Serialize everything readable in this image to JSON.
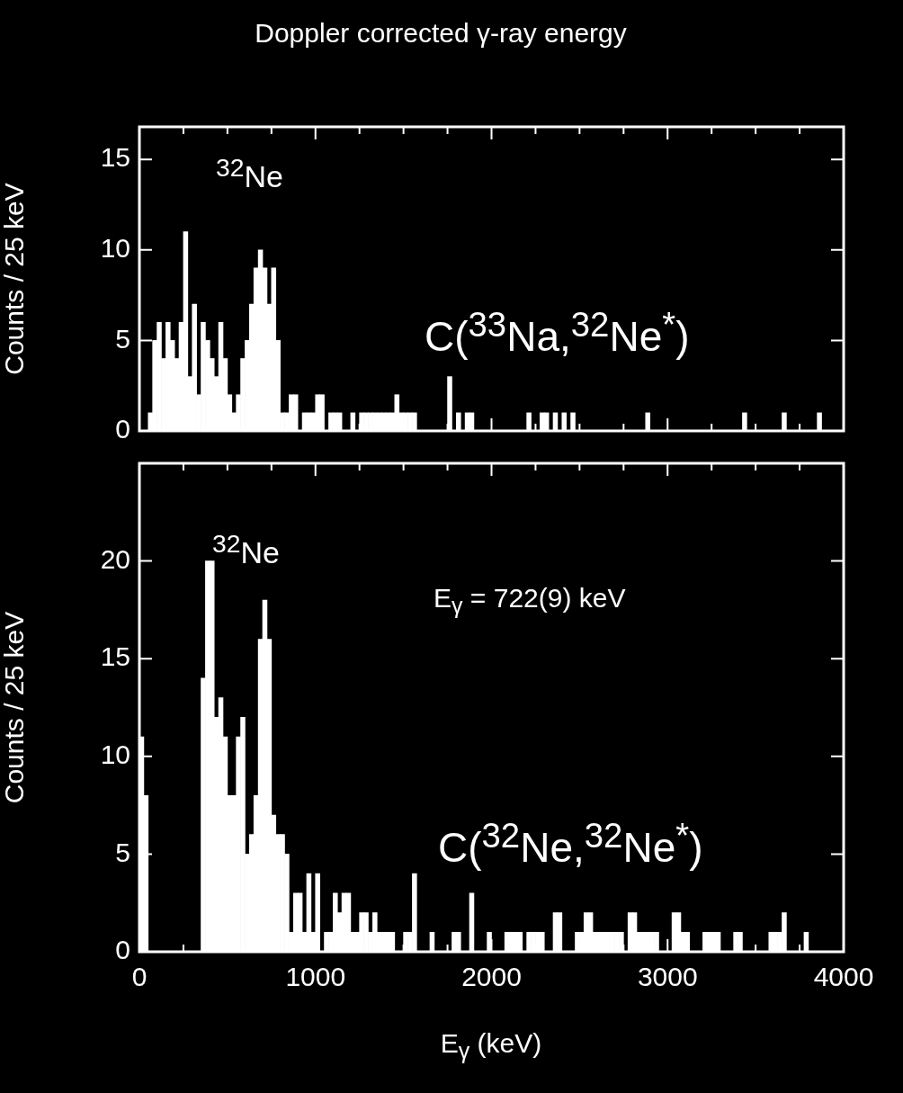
{
  "chart_data": [
    {
      "type": "histogram",
      "title": "Doppler corrected γ-ray energy",
      "ylabel": "Counts / 25 keV",
      "color": "#ffffff",
      "annotations": [
        "$^{32}$Ne",
        "C($^{33}$Na,$^{32}$Ne$^{*}$)"
      ],
      "bins": [
        0,
        25,
        50,
        75,
        100,
        125,
        150,
        175,
        200,
        225,
        250,
        275,
        300,
        325,
        350,
        375,
        400,
        425,
        450,
        475,
        500,
        525,
        550,
        575,
        600,
        625,
        650,
        675,
        700,
        725,
        750,
        775,
        800,
        825,
        850,
        875,
        900,
        925,
        950,
        975,
        1000,
        1025,
        1050,
        1075,
        1100,
        1125,
        1150,
        1175,
        1200,
        1225,
        1250,
        1275,
        1300,
        1325,
        1350,
        1375,
        1400,
        1425,
        1450,
        1475,
        1500,
        1525,
        1550,
        1575,
        1600,
        1625,
        1650,
        1675,
        1700,
        1725,
        1750,
        1775,
        1800,
        1825,
        1850,
        1875,
        1900,
        1925,
        1950,
        1975,
        2000,
        2025,
        2050,
        2075,
        2100,
        2125,
        2150,
        2175,
        2200,
        2225,
        2250,
        2275,
        2300,
        2325,
        2350,
        2375,
        2400,
        2425,
        2450,
        2475,
        2500,
        2525,
        2550,
        2575,
        2600,
        2625,
        2650,
        2675,
        2700,
        2725,
        2750,
        2775,
        2800,
        2825,
        2850,
        2875,
        2900,
        2925,
        2950,
        2975,
        3000,
        3025,
        3050,
        3075,
        3100,
        3125,
        3150,
        3175,
        3200,
        3225,
        3250,
        3275,
        3300,
        3325,
        3350,
        3375,
        3400,
        3425,
        3450,
        3475,
        3500,
        3525,
        3550,
        3575,
        3600,
        3625,
        3650,
        3675,
        3700,
        3725,
        3750,
        3775,
        3800,
        3825,
        3850,
        3875,
        3900,
        3925,
        3950,
        3975,
        4000
      ],
      "values": [
        0,
        0,
        1,
        5,
        6,
        4,
        6,
        5,
        4,
        6,
        11,
        3,
        7,
        2,
        6,
        5,
        4,
        3,
        6,
        4,
        2,
        1,
        2,
        4,
        5,
        7,
        9,
        10,
        9,
        7,
        9,
        5,
        1,
        1,
        2,
        2,
        0,
        1,
        1,
        1,
        2,
        2,
        0,
        1,
        1,
        1,
        0,
        0,
        1,
        0,
        1,
        1,
        1,
        1,
        1,
        1,
        1,
        1,
        2,
        1,
        1,
        1,
        1,
        0,
        0,
        0,
        0,
        0,
        0,
        0,
        3,
        0,
        1,
        0,
        1,
        1,
        0,
        0,
        0,
        0,
        0,
        0,
        0,
        0,
        0,
        0,
        0,
        0,
        1,
        0,
        0,
        1,
        1,
        0,
        1,
        0,
        1,
        0,
        1,
        0,
        0,
        0,
        0,
        0,
        0,
        0,
        0,
        0,
        0,
        0,
        0,
        0,
        0,
        0,
        0,
        1,
        0,
        0,
        0,
        0,
        0,
        0,
        0,
        0,
        0,
        0,
        0,
        0,
        0,
        0,
        0,
        0,
        0,
        0,
        0,
        0,
        0,
        1,
        0,
        0,
        0,
        0,
        0,
        0,
        0,
        0,
        1,
        0,
        0,
        0,
        0,
        0,
        0,
        0,
        1,
        0,
        0,
        0,
        0,
        0
      ],
      "xlim": [
        0,
        4000
      ],
      "ylim": [
        0,
        16.8
      ],
      "xticks": [
        0,
        {
          "value": 250,
          "label": null
        },
        {
          "value": 500,
          "label": null
        },
        {
          "value": 750,
          "label": null
        },
        1000,
        {
          "value": 1250,
          "label": null
        },
        {
          "value": 1500,
          "label": null
        },
        {
          "value": 1750,
          "label": null
        },
        2000,
        {
          "value": 2250,
          "label": null
        },
        {
          "value": 2500,
          "label": null
        },
        {
          "value": 2750,
          "label": null
        },
        3000,
        {
          "value": 3250,
          "label": null
        },
        {
          "value": 3500,
          "label": null
        },
        {
          "value": 3750,
          "label": null
        },
        4000
      ],
      "yticks": [
        0,
        5,
        10,
        15
      ],
      "tick_labels": "y"
    },
    {
      "type": "histogram",
      "ylabel": "Counts / 25 keV",
      "xlabel": "E$_{γ}$ (keV)",
      "color": "#ffffff",
      "annotations": [
        "$^{32}$Ne",
        "E$_{γ}$ = 722(9) keV",
        "C($^{32}$Ne,$^{32}$Ne$^{*}$)"
      ],
      "bins": [
        0,
        25,
        50,
        75,
        100,
        125,
        150,
        175,
        200,
        225,
        250,
        275,
        300,
        325,
        350,
        375,
        400,
        425,
        450,
        475,
        500,
        525,
        550,
        575,
        600,
        625,
        650,
        675,
        700,
        725,
        750,
        775,
        800,
        825,
        850,
        875,
        900,
        925,
        950,
        975,
        1000,
        1025,
        1050,
        1075,
        1100,
        1125,
        1150,
        1175,
        1200,
        1225,
        1250,
        1275,
        1300,
        1325,
        1350,
        1375,
        1400,
        1425,
        1450,
        1475,
        1500,
        1525,
        1550,
        1575,
        1600,
        1625,
        1650,
        1675,
        1700,
        1725,
        1750,
        1775,
        1800,
        1825,
        1850,
        1875,
        1900,
        1925,
        1950,
        1975,
        2000,
        2025,
        2050,
        2075,
        2100,
        2125,
        2150,
        2175,
        2200,
        2225,
        2250,
        2275,
        2300,
        2325,
        2350,
        2375,
        2400,
        2425,
        2450,
        2475,
        2500,
        2525,
        2550,
        2575,
        2600,
        2625,
        2650,
        2675,
        2700,
        2725,
        2750,
        2775,
        2800,
        2825,
        2850,
        2875,
        2900,
        2925,
        2950,
        2975,
        3000,
        3025,
        3050,
        3075,
        3100,
        3125,
        3150,
        3175,
        3200,
        3225,
        3250,
        3275,
        3300,
        3325,
        3350,
        3375,
        3400,
        3425,
        3450,
        3475,
        3500,
        3525,
        3550,
        3575,
        3600,
        3625,
        3650,
        3675,
        3700,
        3725,
        3750,
        3775,
        3800,
        3825,
        3850,
        3875,
        3900,
        3925,
        3950,
        3975,
        4000
      ],
      "values": [
        11,
        8,
        null,
        null,
        null,
        null,
        null,
        null,
        null,
        null,
        null,
        null,
        null,
        null,
        14,
        20,
        20,
        12,
        13,
        11,
        8,
        8,
        11,
        12,
        5,
        6,
        8,
        16,
        18,
        16,
        7,
        6,
        6,
        5,
        1,
        3,
        3,
        1,
        4,
        1,
        4,
        0,
        1,
        1,
        3,
        2,
        3,
        3,
        1,
        1,
        2,
        2,
        1,
        2,
        1,
        1,
        1,
        1,
        0,
        0,
        1,
        1,
        4,
        0,
        0,
        0,
        1,
        0,
        0,
        0,
        0,
        1,
        1,
        0,
        0,
        3,
        0,
        0,
        0,
        1,
        0,
        0,
        0,
        1,
        1,
        1,
        1,
        0,
        1,
        1,
        1,
        1,
        0,
        0,
        2,
        2,
        0,
        0,
        0,
        1,
        1,
        2,
        2,
        1,
        1,
        1,
        1,
        1,
        1,
        1,
        0,
        2,
        2,
        1,
        1,
        1,
        1,
        1,
        0,
        0,
        0,
        2,
        2,
        1,
        1,
        0,
        0,
        0,
        1,
        1,
        1,
        1,
        0,
        0,
        0,
        1,
        1,
        0,
        0,
        0,
        0,
        0,
        0,
        1,
        1,
        1,
        2,
        0,
        0,
        0,
        0,
        1,
        0,
        0,
        0,
        0,
        0,
        0,
        0,
        0
      ],
      "xlim": [
        0,
        4000
      ],
      "ylim": [
        0,
        25
      ],
      "xticks": [
        0,
        {
          "value": 250,
          "label": null
        },
        {
          "value": 500,
          "label": null
        },
        {
          "value": 750,
          "label": null
        },
        1000,
        {
          "value": 1250,
          "label": null
        },
        {
          "value": 1500,
          "label": null
        },
        {
          "value": 1750,
          "label": null
        },
        2000,
        {
          "value": 2250,
          "label": null
        },
        {
          "value": 2500,
          "label": null
        },
        {
          "value": 2750,
          "label": null
        },
        3000,
        {
          "value": 3250,
          "label": null
        },
        {
          "value": 3500,
          "label": null
        },
        {
          "value": 3750,
          "label": null
        },
        4000
      ],
      "yticks": [
        0,
        5,
        10,
        15,
        20
      ]
    }
  ]
}
